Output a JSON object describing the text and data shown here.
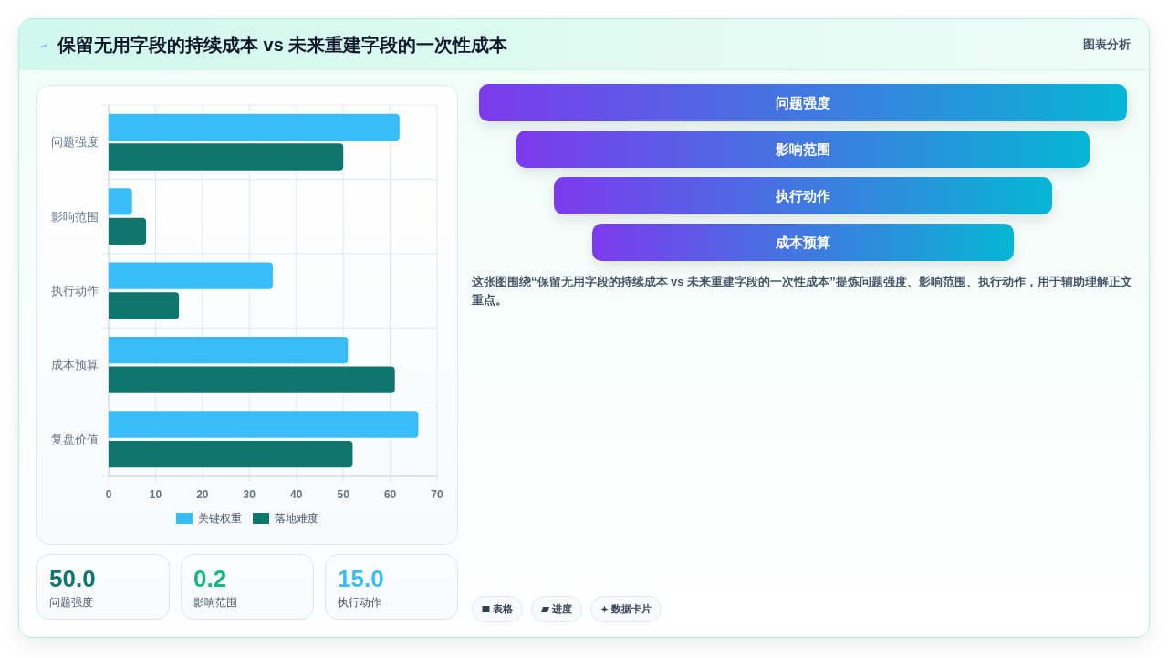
{
  "chart_data": [
    {
      "type": "other",
      "title": "保留无用字段的持续成本 vs 未来重建字段的一次性成本",
      "annotations": [
        "图表分析"
      ]
    },
    {
      "type": "bar",
      "orientation": "horizontal",
      "categories": [
        "问题强度",
        "影响范围",
        "执行动作",
        "成本预算",
        "复盘价值"
      ],
      "series": [
        {
          "name": "关键权重",
          "color": "#38bdf8",
          "values": [
            62,
            5,
            35,
            51,
            66
          ]
        },
        {
          "name": "落地难度",
          "color": "#0f766e",
          "values": [
            50,
            8,
            15,
            61,
            52
          ]
        }
      ],
      "xlim": [
        0,
        70
      ],
      "xticks": [
        0,
        10,
        20,
        30,
        40,
        50,
        60,
        70
      ],
      "grid": true,
      "legend": "bottom"
    },
    {
      "type": "other",
      "categories": [
        "问题强度",
        "影响范围",
        "执行动作",
        "成本预算"
      ],
      "annotations": [
        "这张图围绕“保留无用字段的持续成本 vs 未来重建字段的一次性成本”提炼问题强度、影响范围、执行动作，用于辅助理解正文重点。",
        "表格",
        "进度",
        "数据卡片"
      ]
    },
    {
      "type": "other",
      "annotations": [
        "50.0",
        "问题强度",
        "0.2",
        "影响范围",
        "15.0",
        "执行动作"
      ]
    }
  ]
}
